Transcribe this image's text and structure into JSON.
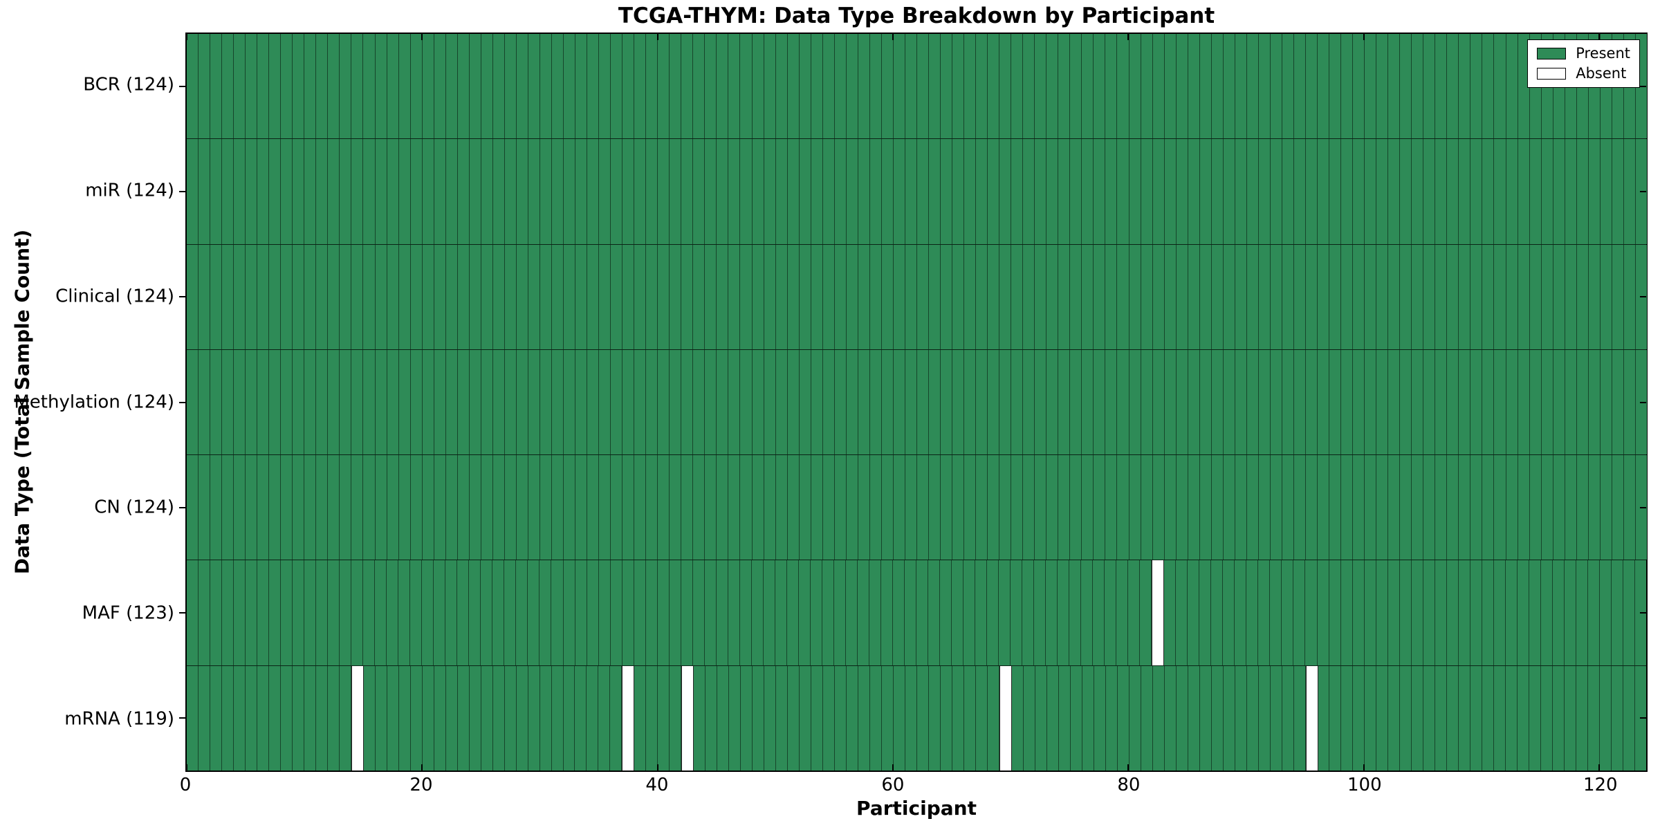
{
  "colors": {
    "present": "#2E8B57",
    "absent": "#FFFFFF",
    "edge": "#000000",
    "background": "#FFFFFF"
  },
  "chart_data": {
    "type": "heatmap",
    "title": "TCGA-THYM: Data Type Breakdown by Participant",
    "xlabel": "Participant",
    "ylabel": "Data Type (Total Sample Count)",
    "x_range": [
      0,
      124
    ],
    "x_ticks": [
      0,
      20,
      40,
      60,
      80,
      100,
      120
    ],
    "n_participants": 124,
    "grid": false,
    "legend_position": "upper right",
    "rows": [
      {
        "name": "BCR",
        "label": "BCR (124)",
        "total": 124,
        "absent_participants": []
      },
      {
        "name": "miR",
        "label": "miR (124)",
        "total": 124,
        "absent_participants": []
      },
      {
        "name": "Clinical",
        "label": "Clinical (124)",
        "total": 124,
        "absent_participants": []
      },
      {
        "name": "Methylation",
        "label": "Methylation (124)",
        "total": 124,
        "absent_participants": []
      },
      {
        "name": "CN",
        "label": "CN (124)",
        "total": 124,
        "absent_participants": []
      },
      {
        "name": "MAF",
        "label": "MAF (123)",
        "total": 123,
        "absent_participants": [
          82
        ]
      },
      {
        "name": "mRNA",
        "label": "mRNA (119)",
        "total": 119,
        "absent_participants": [
          14,
          37,
          42,
          69,
          95
        ]
      }
    ],
    "legend": [
      {
        "label": "Present",
        "color": "#2E8B57"
      },
      {
        "label": "Absent",
        "color": "#FFFFFF"
      }
    ]
  }
}
